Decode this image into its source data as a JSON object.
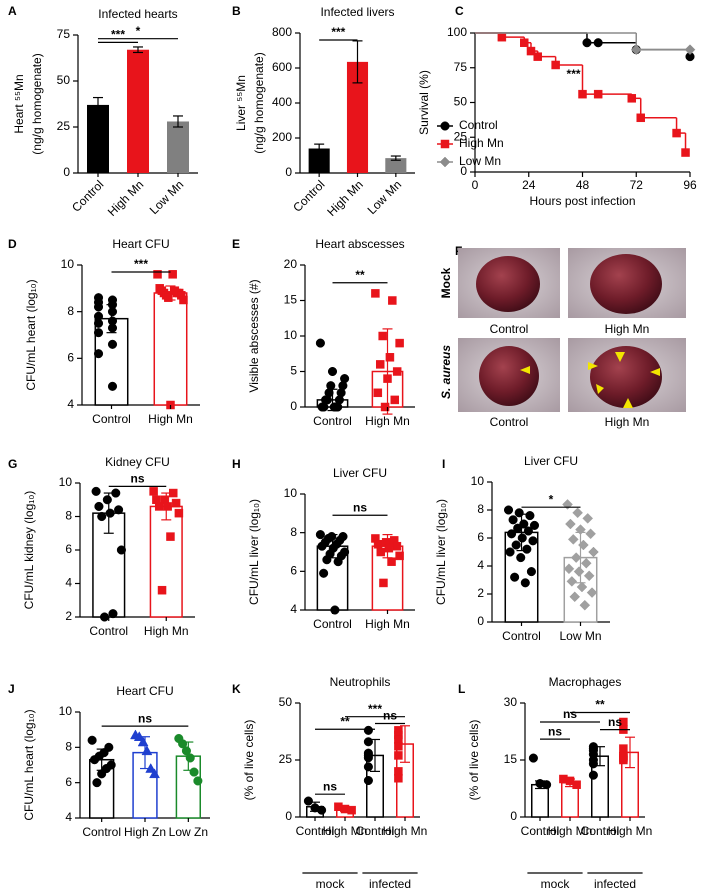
{
  "chart_data": [
    {
      "type": "bar",
      "letter": "A",
      "title": "Infected hearts",
      "ylabel": [
        "Heart ⁵⁵Mn",
        "(ng/g homogenate)"
      ],
      "categories": [
        "Control",
        "High Mn",
        "Low Mn"
      ],
      "values": [
        37,
        67,
        28
      ],
      "errors": [
        4,
        1.5,
        3
      ],
      "colors": [
        "#000000",
        "#e8141b",
        "#808080"
      ],
      "ylim": [
        0,
        75
      ],
      "yticks": [
        0,
        25,
        50,
        75
      ],
      "annotations": [
        {
          "text": "***",
          "between": [
            0,
            1
          ],
          "y": 71
        },
        {
          "text": "*",
          "between": [
            0,
            2
          ],
          "y": 73
        }
      ]
    },
    {
      "type": "bar",
      "letter": "B",
      "title": "Infected livers",
      "ylabel": [
        "Liver ⁵⁵Mn",
        "(ng/g homogenate)"
      ],
      "categories": [
        "Control",
        "High Mn",
        "Low Mn"
      ],
      "values": [
        140,
        635,
        85
      ],
      "errors": [
        25,
        120,
        12
      ],
      "colors": [
        "#000000",
        "#e8141b",
        "#808080"
      ],
      "ylim": [
        0,
        800
      ],
      "yticks": [
        0,
        200,
        400,
        600,
        800
      ],
      "annotations": [
        {
          "text": "***",
          "between": [
            0,
            1
          ],
          "y": 760
        }
      ]
    },
    {
      "type": "step",
      "letter": "C",
      "xlabel": "Hours post infection",
      "ylabel": "Survival (%)",
      "xlim": [
        0,
        96
      ],
      "xticks": [
        0,
        24,
        48,
        72,
        96
      ],
      "ylim": [
        0,
        100
      ],
      "yticks": [
        0,
        25,
        50,
        75,
        100
      ],
      "legend": "lower left",
      "series": [
        {
          "name": "Control",
          "color": "#000000",
          "marker": "circle",
          "x": [
            0,
            50,
            55,
            72,
            96
          ],
          "values": [
            100,
            93,
            93,
            88,
            83
          ]
        },
        {
          "name": "High Mn",
          "color": "#e8141b",
          "marker": "square",
          "x": [
            0,
            12,
            22,
            25,
            28,
            36,
            48,
            55,
            70,
            74,
            90,
            94
          ],
          "values": [
            100,
            97,
            93,
            87,
            83,
            77,
            56,
            56,
            53,
            39,
            28,
            14
          ]
        },
        {
          "name": "Low Mn",
          "color": "#8c8c8c",
          "marker": "diamond",
          "x": [
            0,
            72,
            96
          ],
          "values": [
            100,
            88,
            88
          ]
        }
      ],
      "annotations": [
        {
          "text": "***",
          "x": 44,
          "y": 70
        }
      ]
    },
    {
      "type": "dot_bar",
      "letter": "D",
      "title": "Heart CFU",
      "ylabel": "CFU/mL heart (log₁₀)",
      "categories": [
        "Control",
        "High Mn"
      ],
      "values": [
        7.7,
        8.8
      ],
      "errors": [
        0.6,
        0.3
      ],
      "colors": [
        "#000000",
        "#e8141b"
      ],
      "markers": [
        "circle",
        "square"
      ],
      "points": [
        [
          8.6,
          8.5,
          8.4,
          8.3,
          8.2,
          8.0,
          7.8,
          7.6,
          7.5,
          7.3,
          7.1,
          6.6,
          6.2,
          4.8
        ],
        [
          9.6,
          9.6,
          9.0,
          8.9,
          8.9,
          8.8,
          8.8,
          8.8,
          8.7,
          8.7,
          8.6,
          8.5,
          4.0
        ]
      ],
      "ylim": [
        4,
        10
      ],
      "yticks": [
        4,
        6,
        8,
        10
      ],
      "annotations": [
        {
          "text": "***",
          "between": [
            0,
            1
          ],
          "y": 9.7
        }
      ]
    },
    {
      "type": "dot_bar",
      "letter": "E",
      "title": "Heart abscesses",
      "ylabel": "Visible abscesses (#)",
      "categories": [
        "Control",
        "High Mn"
      ],
      "values": [
        1,
        5
      ],
      "errors": [
        1.5,
        6
      ],
      "colors": [
        "#000000",
        "#e8141b"
      ],
      "markers": [
        "circle",
        "square"
      ],
      "points": [
        [
          9,
          5,
          4,
          3,
          3,
          2,
          2,
          1,
          1,
          1,
          0,
          0,
          0,
          0,
          0
        ],
        [
          16,
          15,
          10,
          9,
          7,
          6,
          5,
          4,
          2,
          1,
          0
        ]
      ],
      "ylim": [
        0,
        20
      ],
      "yticks": [
        0,
        5,
        10,
        15,
        20
      ],
      "annotations": [
        {
          "text": "**",
          "between": [
            0,
            1
          ],
          "y": 17.5
        }
      ]
    },
    {
      "type": "dot_bar",
      "letter": "G",
      "title": "Kidney CFU",
      "ylabel": "CFU/mL kidney (log₁₀)",
      "categories": [
        "Control",
        "High Mn"
      ],
      "values": [
        8.2,
        8.6
      ],
      "errors": [
        1.2,
        0.8
      ],
      "colors": [
        "#000000",
        "#e8141b"
      ],
      "markers": [
        "circle",
        "square"
      ],
      "points": [
        [
          9.5,
          9.4,
          9.0,
          8.6,
          8.4,
          8.2,
          8.0,
          6.0,
          2.2,
          2.0
        ],
        [
          9.5,
          9.4,
          9.0,
          9.0,
          8.8,
          8.6,
          8.6,
          8.2,
          6.8,
          3.6
        ]
      ],
      "ylim": [
        2,
        10
      ],
      "yticks": [
        2,
        4,
        6,
        8,
        10
      ],
      "annotations": [
        {
          "text": "ns",
          "between": [
            0,
            1
          ],
          "y": 9.8
        }
      ]
    },
    {
      "type": "dot_bar",
      "letter": "H",
      "title": "Liver CFU",
      "ylabel": "CFU/mL liver (log₁₀)",
      "categories": [
        "Control",
        "High Mn"
      ],
      "values": [
        7.3,
        7.3
      ],
      "errors": [
        0.6,
        0.6
      ],
      "colors": [
        "#000000",
        "#e8141b"
      ],
      "markers": [
        "circle",
        "square"
      ],
      "points": [
        [
          7.9,
          7.8,
          7.8,
          7.7,
          7.6,
          7.5,
          7.4,
          7.3,
          7.2,
          7.0,
          6.9,
          6.8,
          6.6,
          6.5,
          5.9,
          4.0
        ],
        [
          7.7,
          7.6,
          7.5,
          7.4,
          7.3,
          7.2,
          7.0,
          6.8,
          6.5,
          5.4
        ]
      ],
      "ylim": [
        4,
        10
      ],
      "yticks": [
        4,
        6,
        8,
        10
      ],
      "annotations": [
        {
          "text": "ns",
          "between": [
            0,
            1
          ],
          "y": 8.9
        }
      ]
    },
    {
      "type": "dot_bar",
      "letter": "I",
      "title": "Liver CFU",
      "ylabel": "CFU/mL liver (log₁₀)",
      "categories": [
        "Control",
        "Low Mn"
      ],
      "values": [
        6.4,
        4.6
      ],
      "errors": [
        1.3,
        1.8
      ],
      "colors": [
        "#000000",
        "#a0a0a0"
      ],
      "markers": [
        "circle",
        "diamond"
      ],
      "points": [
        [
          8.0,
          7.8,
          7.6,
          7.3,
          7.0,
          6.9,
          6.7,
          6.5,
          6.3,
          6.0,
          5.8,
          5.5,
          5.2,
          5.0,
          4.6,
          3.6,
          3.2,
          2.8
        ],
        [
          8.4,
          7.8,
          7.4,
          7.0,
          6.6,
          6.3,
          5.9,
          5.5,
          5.0,
          4.6,
          4.2,
          3.8,
          3.6,
          3.3,
          2.9,
          2.5,
          2.1,
          1.8,
          1.2
        ]
      ],
      "ylim": [
        0,
        10
      ],
      "yticks": [
        0,
        2,
        4,
        6,
        8,
        10
      ],
      "annotations": [
        {
          "text": "*",
          "between": [
            0,
            1
          ],
          "y": 8.2
        }
      ]
    },
    {
      "type": "dot_bar",
      "letter": "J",
      "title": "Heart CFU",
      "ylabel": "CFU/mL heart (log₁₀)",
      "categories": [
        "Control",
        "High Zn",
        "Low Zn"
      ],
      "values": [
        7.3,
        7.7,
        7.5
      ],
      "errors": [
        0.6,
        0.9,
        0.8
      ],
      "colors": [
        "#000000",
        "#1f3fcf",
        "#1a8a2a"
      ],
      "markers": [
        "circle",
        "triangle",
        "circle"
      ],
      "points": [
        [
          8.4,
          8.0,
          7.7,
          7.5,
          7.3,
          7.0,
          6.8,
          6.5,
          6.0
        ],
        [
          8.7,
          8.6,
          8.3,
          7.8,
          6.8,
          6.5
        ],
        [
          8.5,
          8.2,
          7.8,
          7.4,
          6.6,
          6.1
        ]
      ],
      "ylim": [
        4,
        10
      ],
      "yticks": [
        4,
        6,
        8,
        10
      ],
      "annotations": [
        {
          "text": "ns",
          "between": [
            0,
            2
          ],
          "y": 9.2
        }
      ]
    },
    {
      "type": "dot_bar",
      "letter": "K",
      "title": "Neutrophils",
      "ylabel": "(% of live cells)",
      "categories": [
        "Control",
        "High Mn",
        "Control",
        "High Mn"
      ],
      "values": [
        4.5,
        3.5,
        27,
        32
      ],
      "errors": [
        2,
        1,
        7,
        8
      ],
      "colors": [
        "#000000",
        "#e8141b",
        "#000000",
        "#e8141b"
      ],
      "markers": [
        "circle",
        "square",
        "circle",
        "square"
      ],
      "points": [
        [
          7,
          4,
          3
        ],
        [
          4.5,
          3.5,
          3
        ],
        [
          38,
          33,
          28,
          27,
          26,
          22,
          16
        ],
        [
          38,
          36,
          34,
          31,
          27,
          20,
          17
        ]
      ],
      "ylim": [
        0,
        50
      ],
      "yticks": [
        0,
        25,
        50
      ],
      "groups": [
        {
          "label": "mock",
          "categories": [
            0,
            1
          ]
        },
        {
          "label": "infected",
          "categories": [
            2,
            3
          ]
        }
      ],
      "annotations": [
        {
          "text": "ns",
          "between": [
            0,
            1
          ],
          "y": 10
        },
        {
          "text": "**",
          "between": [
            0,
            2
          ],
          "y": 38.5
        },
        {
          "text": "***",
          "between": [
            1,
            3
          ],
          "y": 44
        },
        {
          "text": "ns",
          "between": [
            2,
            3
          ],
          "y": 41
        }
      ]
    },
    {
      "type": "dot_bar",
      "letter": "L",
      "title": "Macrophages",
      "ylabel": "(% of live cells)",
      "categories": [
        "Control",
        "High Mn",
        "Control",
        "High Mn"
      ],
      "values": [
        8.5,
        9,
        16,
        17
      ],
      "errors": [
        1,
        1,
        2.5,
        4
      ],
      "colors": [
        "#000000",
        "#e8141b",
        "#000000",
        "#e8141b"
      ],
      "markers": [
        "circle",
        "square",
        "circle",
        "square"
      ],
      "points": [
        [
          15.5,
          8.8,
          8.5
        ],
        [
          10,
          9.5,
          8.5
        ],
        [
          18.5,
          18,
          17.5,
          16.5,
          15,
          14,
          11
        ],
        [
          25,
          23,
          18,
          16,
          16,
          15.5,
          15
        ]
      ],
      "ylim": [
        0,
        30
      ],
      "yticks": [
        0,
        15,
        30
      ],
      "groups": [
        {
          "label": "mock",
          "categories": [
            0,
            1
          ]
        },
        {
          "label": "infected",
          "categories": [
            2,
            3
          ]
        }
      ],
      "annotations": [
        {
          "text": "ns",
          "between": [
            0,
            1
          ],
          "y": 20.5
        },
        {
          "text": "ns",
          "between": [
            0,
            2
          ],
          "y": 25
        },
        {
          "text": "**",
          "between": [
            1,
            3
          ],
          "y": 27.5
        },
        {
          "text": "ns",
          "between": [
            2,
            3
          ],
          "y": 23
        }
      ]
    }
  ],
  "photo_panel": {
    "letter": "F",
    "row_labels": [
      "Mock",
      "S. aureus"
    ],
    "column_labels": [
      "Control",
      "High Mn"
    ]
  }
}
